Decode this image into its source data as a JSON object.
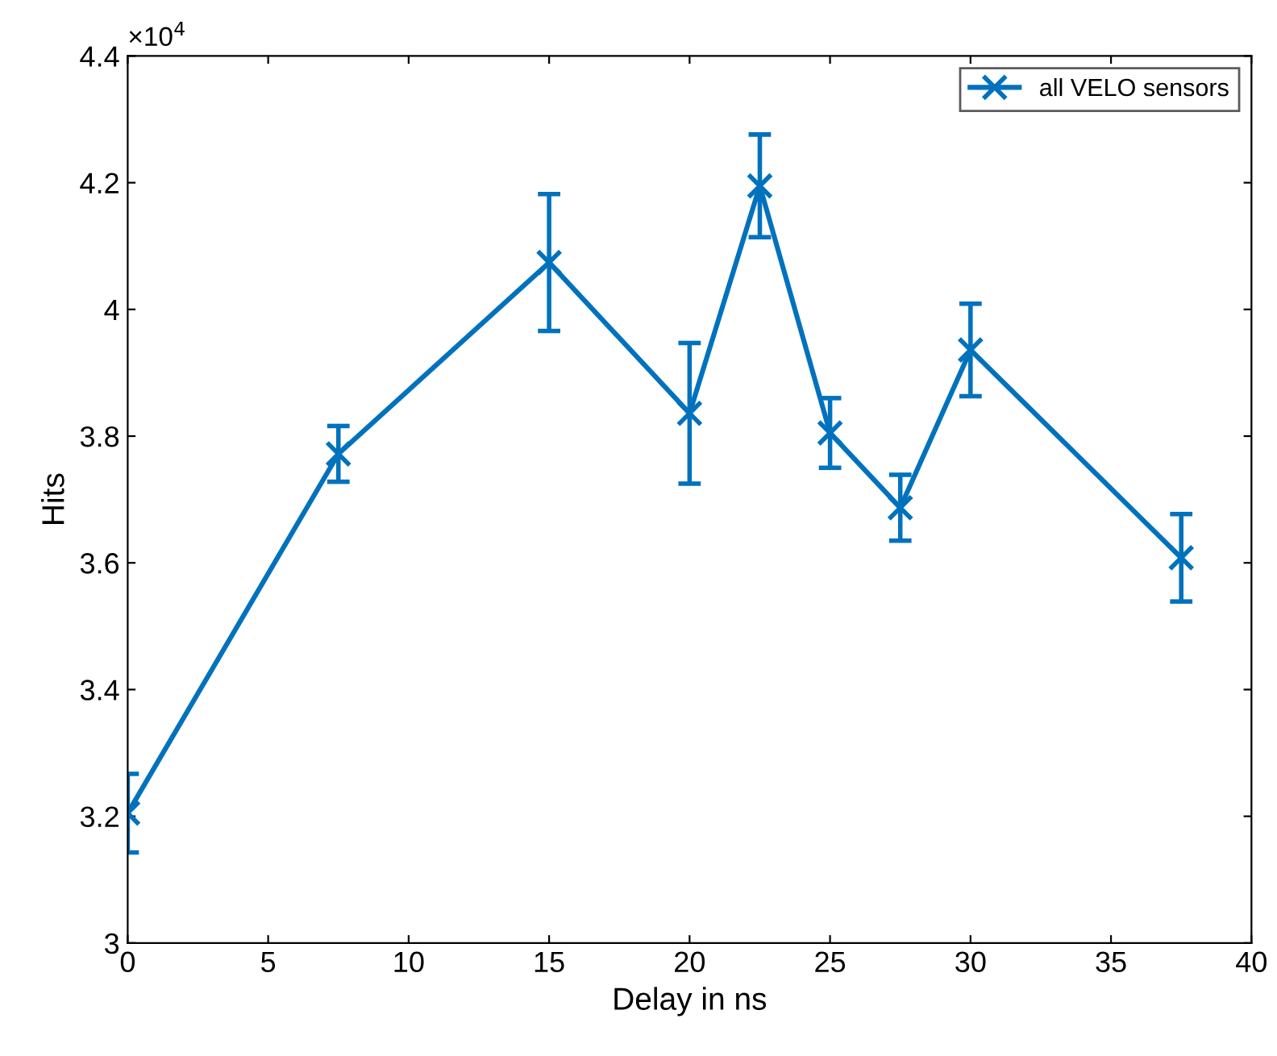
{
  "chart_data": {
    "type": "line",
    "xlabel": "Delay in ns",
    "ylabel": "Hits",
    "annotations": [
      "×10$^{4}$"
    ],
    "x": [
      0,
      7.5,
      15,
      20,
      22.5,
      25,
      27.5,
      30,
      37.5
    ],
    "series": [
      {
        "name": "all VELO sensors",
        "color": "#0072bd",
        "values": [
          3.205,
          3.772,
          4.074,
          3.836,
          4.195,
          3.805,
          3.687,
          3.936,
          3.608
        ],
        "errors": [
          0.062,
          0.044,
          0.108,
          0.111,
          0.081,
          0.055,
          0.052,
          0.073,
          0.069
        ]
      }
    ],
    "xlim": [
      0,
      40
    ],
    "xticks": [
      0,
      5,
      10,
      15,
      20,
      25,
      30,
      35,
      40
    ],
    "ylim": [
      3,
      4.4
    ],
    "yticks": [
      3,
      3.2,
      3.4,
      3.6,
      3.8,
      4,
      4.2,
      4.4
    ],
    "marker": "cross",
    "line_style": "solid",
    "legend": "top right",
    "grid": false
  }
}
